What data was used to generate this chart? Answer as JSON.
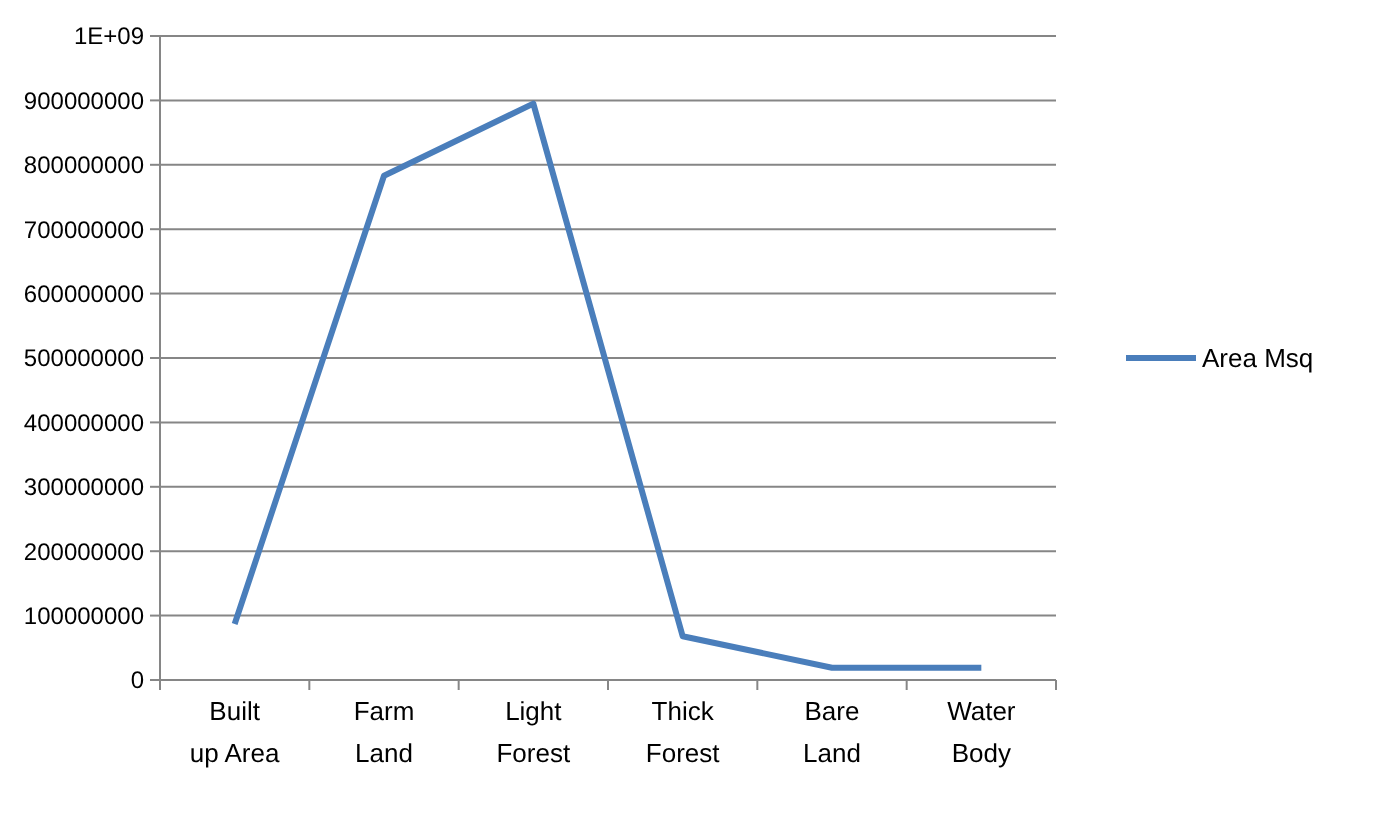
{
  "chart_data": {
    "type": "line",
    "categories": [
      "Built up Area",
      "Farm Land",
      "Light Forest",
      "Thick Forest",
      "Bare Land",
      "Water Body"
    ],
    "series": [
      {
        "name": "Area Msq",
        "color": "#4a7ebb",
        "values": [
          87000000,
          783000000,
          895000000,
          68000000,
          19000000,
          19000000
        ]
      }
    ],
    "ylim": [
      0,
      1000000000
    ],
    "yticks": [
      0,
      100000000,
      200000000,
      300000000,
      400000000,
      500000000,
      600000000,
      700000000,
      800000000,
      900000000,
      {
        "value": 1000000000,
        "label": "1E+09"
      }
    ],
    "grid": "y",
    "legend": "right",
    "marker": "none",
    "line_style": "solid"
  }
}
